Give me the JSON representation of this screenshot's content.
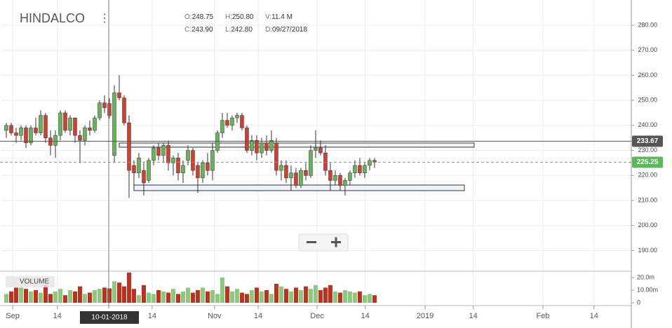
{
  "chart_data": {
    "type": "candlestick",
    "title": "HINDALCO",
    "info": [
      {
        "label": "O:",
        "value": "248.75"
      },
      {
        "label": "H:",
        "value": "250.80"
      },
      {
        "label": "V:",
        "value": "11.4 M"
      },
      {
        "label": "C:",
        "value": "243.90"
      },
      {
        "label": "L:",
        "value": "242.80"
      },
      {
        "label": "D:",
        "value": "09/27/2018"
      }
    ],
    "crosshair_label": "10-01-2018",
    "volume_label": "VOLUME",
    "up_color": "#67b35a",
    "down_color": "#d23f31",
    "volume_up_color": "#8cc97d",
    "volume_down_color": "#c0301f",
    "grid": true,
    "open": [
      238,
      240,
      237,
      236,
      239,
      233,
      239,
      237,
      244,
      235,
      232,
      236,
      245,
      238,
      243,
      236,
      234,
      239,
      238,
      243,
      249,
      248.75,
      228,
      253,
      251,
      241,
      224,
      221,
      222,
      218,
      226,
      231,
      228,
      232,
      225,
      227,
      221,
      226,
      230,
      224,
      219,
      225,
      222,
      230,
      237,
      242,
      240,
      243,
      244,
      239,
      230,
      234,
      229,
      233,
      230,
      233,
      222,
      224,
      219,
      221,
      216,
      222,
      220,
      230,
      231,
      229,
      222,
      218,
      220,
      216,
      218,
      221,
      224,
      221,
      224,
      226
    ],
    "high": [
      241,
      241,
      239,
      240,
      240,
      240,
      243,
      246,
      245,
      238,
      238,
      246,
      246,
      244,
      243,
      238,
      240,
      242,
      244,
      250,
      252,
      250.8,
      256,
      260,
      252,
      244,
      226,
      229,
      225,
      227,
      232,
      233,
      233,
      234,
      228,
      229,
      226,
      232,
      231,
      225,
      226,
      229,
      233,
      238,
      245,
      245,
      244,
      245,
      245,
      240,
      236,
      236,
      235,
      236,
      238,
      235,
      226,
      226,
      224,
      223,
      223,
      225,
      232,
      238,
      234,
      232,
      225,
      222,
      221,
      219,
      222,
      226,
      227,
      225,
      227,
      227
    ],
    "low": [
      235,
      236,
      233,
      234,
      231,
      232,
      236,
      236,
      233,
      228,
      227,
      234,
      237,
      236,
      233,
      225,
      232,
      236,
      237,
      242,
      245,
      242.8,
      225,
      250,
      240,
      211,
      215,
      219,
      212,
      217,
      224,
      226,
      225,
      222,
      220,
      218,
      217,
      224,
      220,
      213,
      217,
      220,
      218,
      229,
      235,
      239,
      238,
      241,
      238,
      229,
      228,
      226,
      227,
      228,
      229,
      220,
      218,
      217,
      214,
      215,
      215,
      218,
      219,
      227,
      228,
      220,
      214,
      216,
      214,
      212,
      216,
      219,
      220,
      219,
      222,
      223
    ],
    "close": [
      240,
      237,
      236,
      239,
      233,
      239,
      237,
      244,
      235,
      232,
      236,
      245,
      238,
      243,
      236,
      234,
      239,
      238,
      243,
      249,
      247,
      243.9,
      253,
      251,
      241,
      222,
      221,
      227,
      217,
      226,
      231,
      228,
      232,
      225,
      227,
      221,
      224,
      230,
      222,
      219,
      225,
      222,
      230,
      237,
      242,
      240,
      243,
      244,
      239,
      230,
      234,
      229,
      233,
      230,
      234,
      222,
      224,
      219,
      221,
      216,
      222,
      220,
      230,
      231,
      229,
      222,
      218,
      220,
      216,
      218,
      221,
      224,
      221,
      224,
      226,
      225.25
    ],
    "volume": [
      7,
      9,
      12,
      12,
      11,
      9,
      10,
      8,
      14,
      7,
      9,
      11,
      6,
      10,
      9,
      13,
      7,
      8,
      10,
      11,
      12,
      11.4,
      17,
      16,
      13,
      24,
      11,
      6,
      14,
      8,
      7,
      10,
      9,
      8,
      11,
      7,
      9,
      12,
      8,
      10,
      12,
      9,
      10,
      7,
      20,
      13,
      9,
      11,
      8,
      7,
      10,
      12,
      9,
      10,
      7,
      15,
      13,
      11,
      9,
      12,
      10,
      13,
      11,
      14,
      10,
      12,
      14,
      9,
      8,
      10,
      9,
      8,
      9,
      6,
      7,
      6
    ],
    "xlim": [
      -1,
      127.3
    ],
    "xticks": [
      {
        "value": 1.3,
        "label": "Sep"
      },
      {
        "value": 10.4,
        "label": "14"
      },
      {
        "value": 29.7,
        "label": "14"
      },
      {
        "value": 42.4,
        "label": "Nov"
      },
      {
        "value": 51.3,
        "label": "14"
      },
      {
        "value": 63.3,
        "label": "Dec"
      },
      {
        "value": 73.1,
        "label": "14"
      },
      {
        "value": 85.3,
        "label": "2019"
      },
      {
        "value": 95.1,
        "label": "14"
      },
      {
        "value": 109.3,
        "label": "Feb"
      },
      {
        "value": 119.7,
        "label": "14"
      }
    ],
    "ylim": [
      180,
      280
    ],
    "yticks": [
      {
        "value": 190,
        "label": "190.00"
      },
      {
        "value": 200,
        "label": "200.00"
      },
      {
        "value": 210,
        "label": "210.00"
      },
      {
        "value": 220,
        "label": "220.00"
      },
      {
        "value": 230,
        "label": "230.00"
      },
      {
        "value": 240,
        "label": "240.00"
      },
      {
        "value": 250,
        "label": "250.00"
      },
      {
        "value": 260,
        "label": "260.00"
      },
      {
        "value": 270,
        "label": "270.00"
      },
      {
        "value": 280,
        "label": "280.00"
      }
    ],
    "volume_ylim": [
      0,
      24
    ],
    "volume_yticks": [
      0,
      {
        "value": 10,
        "label": "10.00m"
      },
      {
        "value": 20,
        "label": "20.0m"
      }
    ],
    "price_lines": [
      {
        "value": 233.67,
        "color": "#555555",
        "dashed": false
      },
      {
        "value": 225.25,
        "color": "#5cb85c",
        "dashed": true
      }
    ]
  }
}
